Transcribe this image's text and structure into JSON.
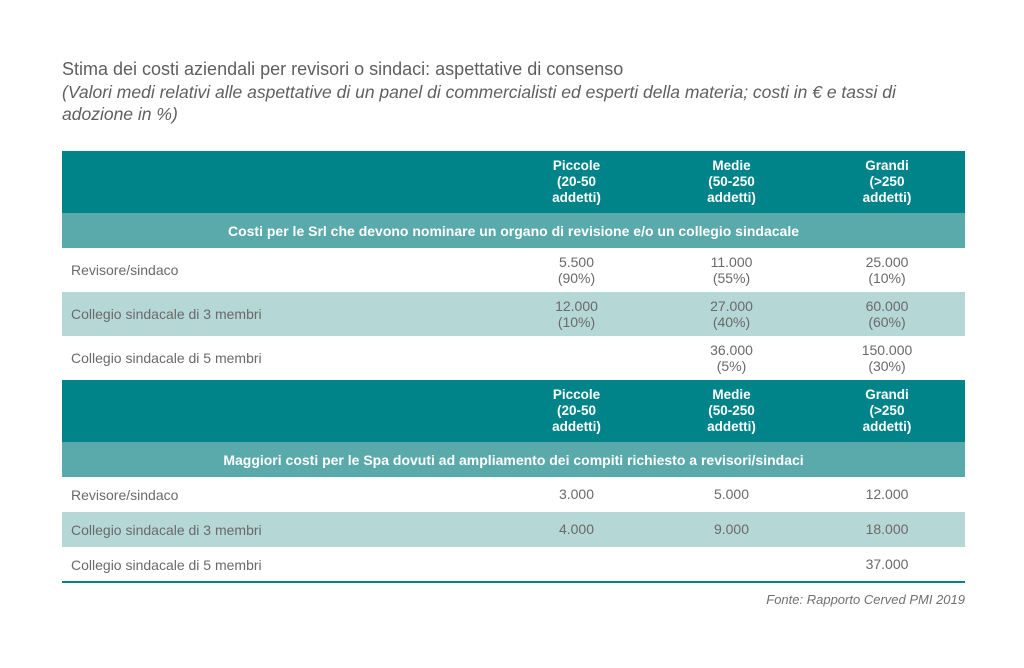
{
  "title": "Stima dei costi aziendali per revisori o sindaci: aspettative di consenso",
  "subtitle": "(Valori medi relativi alle aspettative di un panel di commercialisti ed esperti della materia; costi in € e tassi di adozione in %)",
  "columns": [
    {
      "line1": "Piccole",
      "line2": "(20-50",
      "line3": "addetti)"
    },
    {
      "line1": "Medie",
      "line2": "(50-250",
      "line3": "addetti)"
    },
    {
      "line1": "Grandi",
      "line2": "(>250",
      "line3": "addetti)"
    }
  ],
  "section1": {
    "heading": "Costi per le Srl che devono nominare un organo di revisione e/o un collegio sindacale",
    "rows": [
      {
        "label": "Revisore/sindaco",
        "cells": [
          {
            "v": "5.500",
            "p": "(90%)"
          },
          {
            "v": "11.000",
            "p": "(55%)"
          },
          {
            "v": "25.000",
            "p": "(10%)"
          }
        ]
      },
      {
        "label": "Collegio sindacale di 3 membri",
        "cells": [
          {
            "v": "12.000",
            "p": "(10%)"
          },
          {
            "v": "27.000",
            "p": "(40%)"
          },
          {
            "v": "60.000",
            "p": "(60%)"
          }
        ]
      },
      {
        "label": "Collegio sindacale di 5 membri",
        "cells": [
          {
            "v": "",
            "p": ""
          },
          {
            "v": "36.000",
            "p": "(5%)"
          },
          {
            "v": "150.000",
            "p": "(30%)"
          }
        ]
      }
    ]
  },
  "section2": {
    "heading": "Maggiori costi per le Spa dovuti ad ampliamento dei compiti richiesto a revisori/sindaci",
    "rows": [
      {
        "label": "Revisore/sindaco",
        "cells": [
          "3.000",
          "5.000",
          "12.000"
        ]
      },
      {
        "label": "Collegio sindacale di 3 membri",
        "cells": [
          "4.000",
          "9.000",
          "18.000"
        ]
      },
      {
        "label": "Collegio sindacale di 5 membri",
        "cells": [
          "",
          "",
          "37.000"
        ]
      }
    ]
  },
  "source": "Fonte: Rapporto Cerved PMI 2019",
  "colors": {
    "header": "#00848a",
    "section": "#5aa9ab",
    "alt_row": "#b5d7d5"
  }
}
